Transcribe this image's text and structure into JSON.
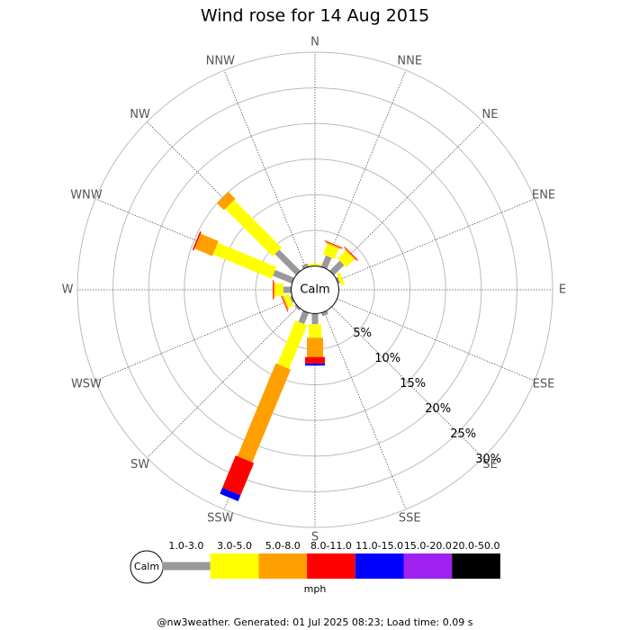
{
  "chart_data": {
    "type": "wind_rose",
    "title": "Wind rose for 14 Aug 2015",
    "directions": [
      "N",
      "NNE",
      "NE",
      "ENE",
      "E",
      "ESE",
      "SE",
      "SSE",
      "S",
      "SSW",
      "SW",
      "WSW",
      "W",
      "WNW",
      "NW",
      "NNW"
    ],
    "rlim": [
      0,
      30
    ],
    "rticks": [
      {
        "value": 5,
        "label": "5%"
      },
      {
        "value": 10,
        "label": "10%"
      },
      {
        "value": 15,
        "label": "15%"
      },
      {
        "value": 20,
        "label": "20%"
      },
      {
        "value": 25,
        "label": "25%"
      },
      {
        "value": 30,
        "label": "30%"
      }
    ],
    "calm_label": "Calm",
    "units": "mph",
    "series": [
      {
        "name": "1.0-3.0",
        "color": "#999999",
        "values": [
          0,
          1.7,
          2.0,
          0.3,
          0,
          0,
          0,
          0.5,
          1.5,
          1.7,
          0.3,
          0.3,
          1.1,
          2.9,
          4.2,
          0.5
        ]
      },
      {
        "name": "3.0-5.0",
        "color": "#ffff00",
        "values": [
          0.3,
          1.6,
          1.6,
          0.5,
          0,
          0,
          0,
          0,
          1.9,
          6.6,
          0,
          0.8,
          1.2,
          8.9,
          9.4,
          0
        ]
      },
      {
        "name": "5.0-8.0",
        "color": "#ffa000",
        "values": [
          0,
          0.2,
          0.2,
          0,
          0,
          0,
          0,
          0,
          2.7,
          14.1,
          0,
          0.2,
          0.2,
          2.7,
          1.4,
          0
        ]
      },
      {
        "name": "8.0-11.0",
        "color": "#ff0000",
        "values": [
          0,
          0.1,
          0.1,
          0,
          0,
          0,
          0,
          0,
          0.9,
          4.9,
          0,
          0.1,
          0.1,
          0.2,
          0,
          0
        ]
      },
      {
        "name": "11.0-15.0",
        "color": "#0000ff",
        "values": [
          0,
          0,
          0,
          0,
          0,
          0,
          0,
          0,
          0.3,
          0.9,
          0,
          0,
          0,
          0,
          0,
          0
        ]
      },
      {
        "name": "15.0-20.0",
        "color": "#a020f0",
        "values": [
          0,
          0,
          0,
          0,
          0,
          0,
          0,
          0,
          0,
          0,
          0,
          0,
          0,
          0,
          0,
          0
        ]
      },
      {
        "name": "20.0-50.0",
        "color": "#000000",
        "values": [
          0,
          0,
          0,
          0,
          0,
          0,
          0,
          0,
          0,
          0,
          0,
          0,
          0,
          0,
          0,
          0
        ]
      }
    ]
  },
  "footer": "@nw3weather. Generated: 01 Jul 2025 08:23; Load time: 0.09 s"
}
